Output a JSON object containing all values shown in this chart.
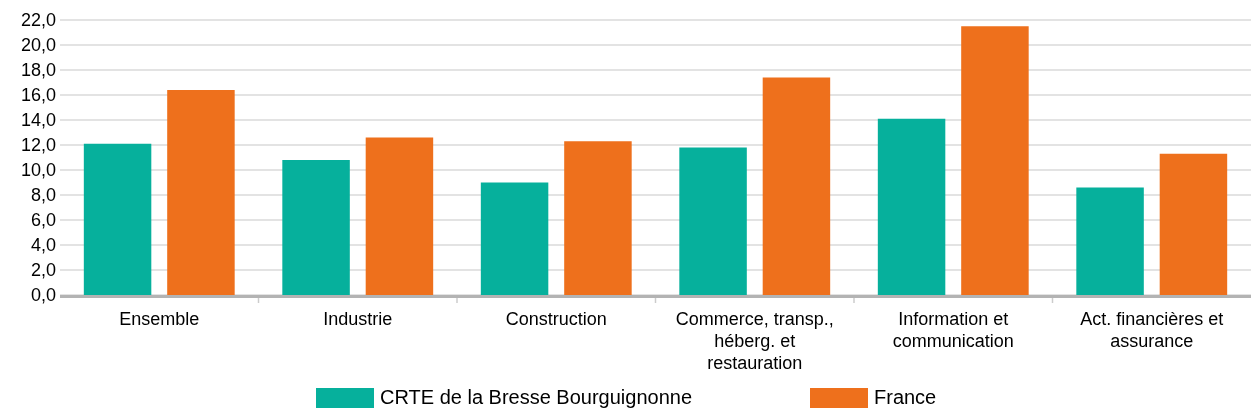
{
  "chart_data": {
    "type": "bar",
    "categories": [
      "Ensemble",
      "Industrie",
      "Construction",
      "Commerce, transp., héberg. et restauration",
      "Information et communication",
      "Act. financières et assurance"
    ],
    "series": [
      {
        "name": "CRTE de la Bresse Bourguignonne",
        "color": "#06b09c",
        "values": [
          12.1,
          10.8,
          9.0,
          11.8,
          14.1,
          8.6
        ]
      },
      {
        "name": "France",
        "color": "#ee701c",
        "values": [
          16.4,
          12.6,
          12.3,
          17.4,
          21.5,
          11.3
        ]
      }
    ],
    "ylim": [
      0,
      22
    ],
    "yticks": [
      {
        "value": 0,
        "label": "0,0"
      },
      {
        "value": 2,
        "label": "2,0"
      },
      {
        "value": 4,
        "label": "4,0"
      },
      {
        "value": 6,
        "label": "6,0"
      },
      {
        "value": 8,
        "label": "8,0"
      },
      {
        "value": 10,
        "label": "10,0"
      },
      {
        "value": 12,
        "label": "12,0"
      },
      {
        "value": 14,
        "label": "14,0"
      },
      {
        "value": 16,
        "label": "16,0"
      },
      {
        "value": 18,
        "label": "18,0"
      },
      {
        "value": 20,
        "label": "20,0"
      },
      {
        "value": 22,
        "label": "22,0"
      }
    ],
    "grid": "y",
    "legend": "bottom"
  }
}
